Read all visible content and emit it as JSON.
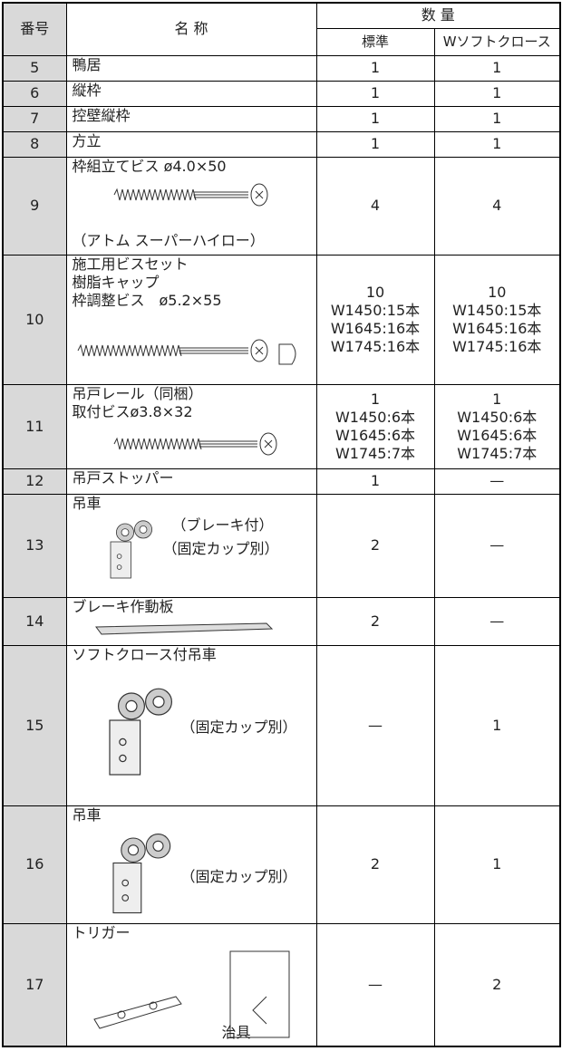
{
  "header": {
    "number": "番号",
    "name": "名 称",
    "quantity": "数 量",
    "standard": "標準",
    "soft": "Wソフトクロース"
  },
  "rows": [
    {
      "number": "5",
      "name": [
        "鴨居"
      ],
      "notes": [],
      "standard": [
        "1"
      ],
      "soft": [
        "1"
      ]
    },
    {
      "number": "6",
      "name": [
        "縦枠"
      ],
      "notes": [],
      "standard": [
        "1"
      ],
      "soft": [
        "1"
      ]
    },
    {
      "number": "7",
      "name": [
        "控壁縦枠"
      ],
      "notes": [],
      "standard": [
        "1"
      ],
      "soft": [
        "1"
      ]
    },
    {
      "number": "8",
      "name": [
        "方立"
      ],
      "notes": [],
      "standard": [
        "1"
      ],
      "soft": [
        "1"
      ]
    },
    {
      "number": "9",
      "name": [
        "枠組立てビス ø4.0×50"
      ],
      "notes": [
        "（アトム スーパーハイロー）"
      ],
      "standard": [
        "4"
      ],
      "soft": [
        "4"
      ]
    },
    {
      "number": "10",
      "name": [
        "施工用ビスセット",
        "樹脂キャップ",
        "枠調整ビス　ø5.2×55"
      ],
      "notes": [],
      "standard": [
        "10",
        "W1450:15本",
        "W1645:16本",
        "W1745:16本"
      ],
      "soft": [
        "10",
        "W1450:15本",
        "W1645:16本",
        "W1745:16本"
      ]
    },
    {
      "number": "11",
      "name": [
        "吊戸レール（同梱）",
        "取付ビスø3.8×32"
      ],
      "notes": [],
      "standard": [
        "1",
        "W1450:6本",
        "W1645:6本",
        "W1745:7本"
      ],
      "soft": [
        "1",
        "W1450:6本",
        "W1645:6本",
        "W1745:7本"
      ]
    },
    {
      "number": "12",
      "name": [
        "吊戸ストッパー"
      ],
      "notes": [],
      "standard": [
        "1"
      ],
      "soft": [
        "—"
      ]
    },
    {
      "number": "13",
      "name": [
        "吊車"
      ],
      "notes": [
        "（ブレーキ付）",
        "（固定カップ別）"
      ],
      "standard": [
        "2"
      ],
      "soft": [
        "—"
      ]
    },
    {
      "number": "14",
      "name": [
        "ブレーキ作動板"
      ],
      "notes": [],
      "standard": [
        "2"
      ],
      "soft": [
        "—"
      ]
    },
    {
      "number": "15",
      "name": [
        "ソフトクロース付吊車"
      ],
      "notes": [
        "（固定カップ別）"
      ],
      "standard": [
        "—"
      ],
      "soft": [
        "1"
      ]
    },
    {
      "number": "16",
      "name": [
        "吊車"
      ],
      "notes": [
        "（固定カップ別）"
      ],
      "standard": [
        "2"
      ],
      "soft": [
        "1"
      ]
    },
    {
      "number": "17",
      "name": [
        "トリガー"
      ],
      "notes": [
        "治具"
      ],
      "standard": [
        "—"
      ],
      "soft": [
        "2"
      ]
    }
  ]
}
